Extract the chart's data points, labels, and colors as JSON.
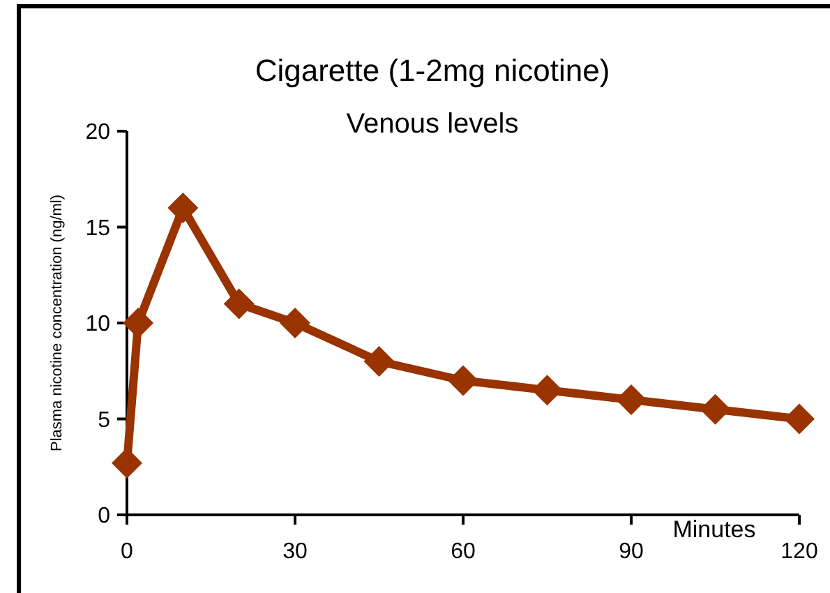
{
  "chart_data": {
    "type": "line",
    "title": "Cigarette (1-2mg nicotine)",
    "subtitle": "Venous levels",
    "xlabel": "Minutes",
    "ylabel": "Plasma nicotine concentration (ng/ml)",
    "x": [
      0,
      2,
      10,
      20,
      30,
      45,
      60,
      75,
      90,
      105,
      120
    ],
    "series": [
      {
        "color": "#993300",
        "values": [
          2.7,
          10,
          16,
          11,
          10,
          8,
          7,
          6.5,
          6,
          5.5,
          5
        ]
      }
    ],
    "xlim": [
      0,
      120
    ],
    "xticks": [
      0,
      30,
      60,
      90,
      120
    ],
    "ylim": [
      0,
      20
    ],
    "yticks": [
      0,
      5,
      10,
      15,
      20
    ],
    "marker": "diamond",
    "line_style": "solid",
    "grid": false
  }
}
